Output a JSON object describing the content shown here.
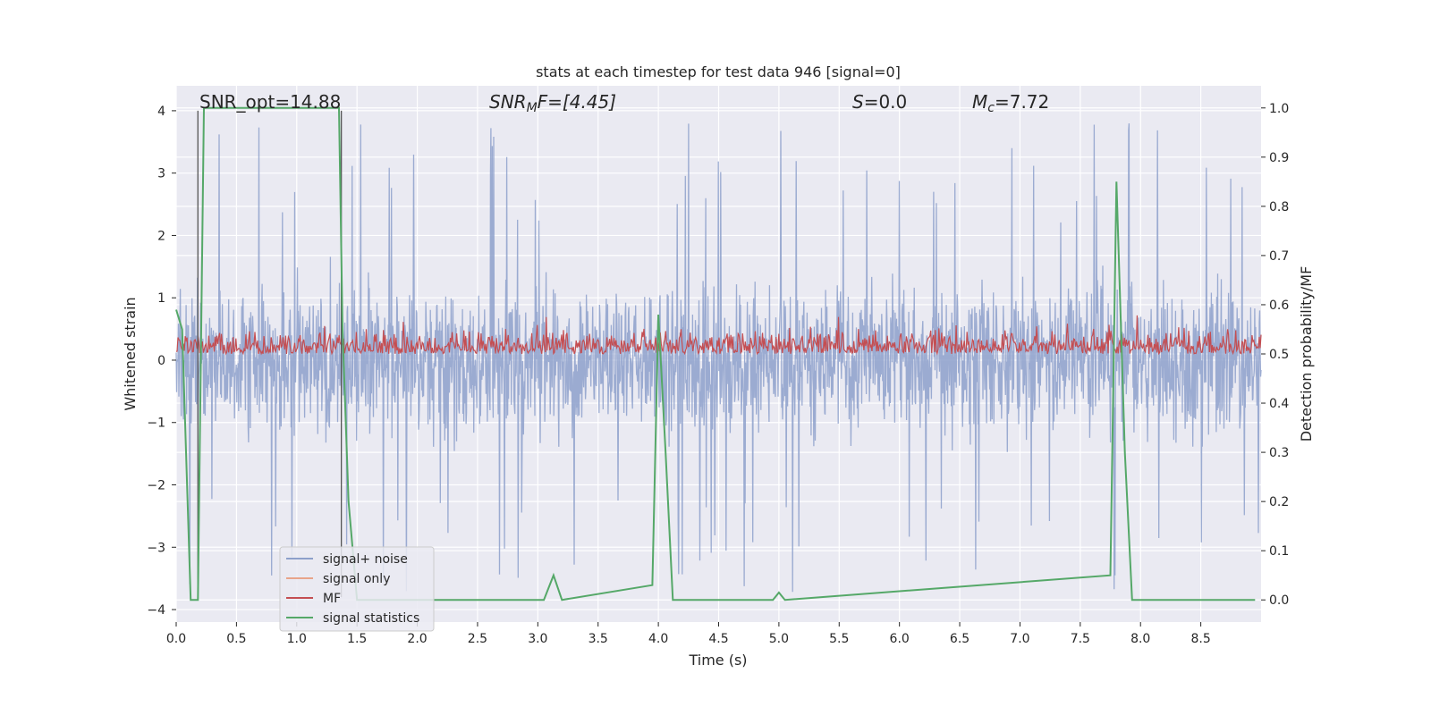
{
  "chart_data": {
    "type": "line",
    "title": "stats at each timestep for test data 946 [signal=0]",
    "xlabel": "Time (s)",
    "ylabel": "Whitened strain",
    "y2label": "Detection probability/MF",
    "xlim": [
      0.0,
      9.0
    ],
    "ylim": [
      -4.2,
      4.4
    ],
    "y2lim": [
      -0.045,
      1.045
    ],
    "xticks": [
      "0.0",
      "0.5",
      "1.0",
      "1.5",
      "2.0",
      "2.5",
      "3.0",
      "3.5",
      "4.0",
      "4.5",
      "5.0",
      "5.5",
      "6.0",
      "6.5",
      "7.0",
      "7.5",
      "8.0",
      "8.5"
    ],
    "yticks": [
      "4",
      "3",
      "2",
      "1",
      "0",
      "−1",
      "−2",
      "−3",
      "−4"
    ],
    "y2ticks": [
      "1.0",
      "0.9",
      "0.8",
      "0.7",
      "0.6",
      "0.5",
      "0.4",
      "0.3",
      "0.2",
      "0.1",
      "0.0"
    ],
    "grid": true,
    "legend_position": "lower-left",
    "annotations": {
      "snr_opt": "SNR_opt=14.88",
      "snr_mf_main": "SNR",
      "snr_mf_sub": "M",
      "snr_mf_rest": "F=[4.45]",
      "s_main": "S",
      "s_rest": "=0.0",
      "mc_main": "M",
      "mc_sub": "c",
      "mc_rest": "=7.72"
    },
    "series": [
      {
        "name": "signal+ noise",
        "color": "#8da0cb",
        "axis": "left",
        "description": "noise band roughly between -1.5 and 1.6 with spikes up to about 3.8 and down to about -3.8"
      },
      {
        "name": "signal only",
        "color": "#e8a48a",
        "axis": "left",
        "values": []
      },
      {
        "name": "MF",
        "color": "#c44e52",
        "axis": "right",
        "baseline": 0.5,
        "range": [
          0.5,
          0.62
        ]
      },
      {
        "name": "signal statistics",
        "color": "#55a868",
        "axis": "right",
        "x": [
          0.0,
          0.05,
          0.12,
          0.18,
          0.23,
          0.28,
          1.35,
          1.38,
          1.43,
          1.5,
          3.05,
          3.13,
          3.2,
          3.95,
          4.0,
          4.06,
          4.12,
          4.95,
          5.0,
          5.05,
          7.75,
          7.8,
          7.87,
          7.93,
          8.95
        ],
        "values": [
          0.59,
          0.55,
          0.0,
          0.0,
          1.0,
          1.0,
          1.0,
          0.55,
          0.2,
          0.0,
          0.0,
          0.05,
          0.0,
          0.03,
          0.58,
          0.3,
          0.0,
          0.0,
          0.015,
          0.0,
          0.05,
          0.85,
          0.3,
          0.0,
          0.0
        ]
      }
    ],
    "vertical_markers": [
      0.18,
      1.37
    ]
  }
}
